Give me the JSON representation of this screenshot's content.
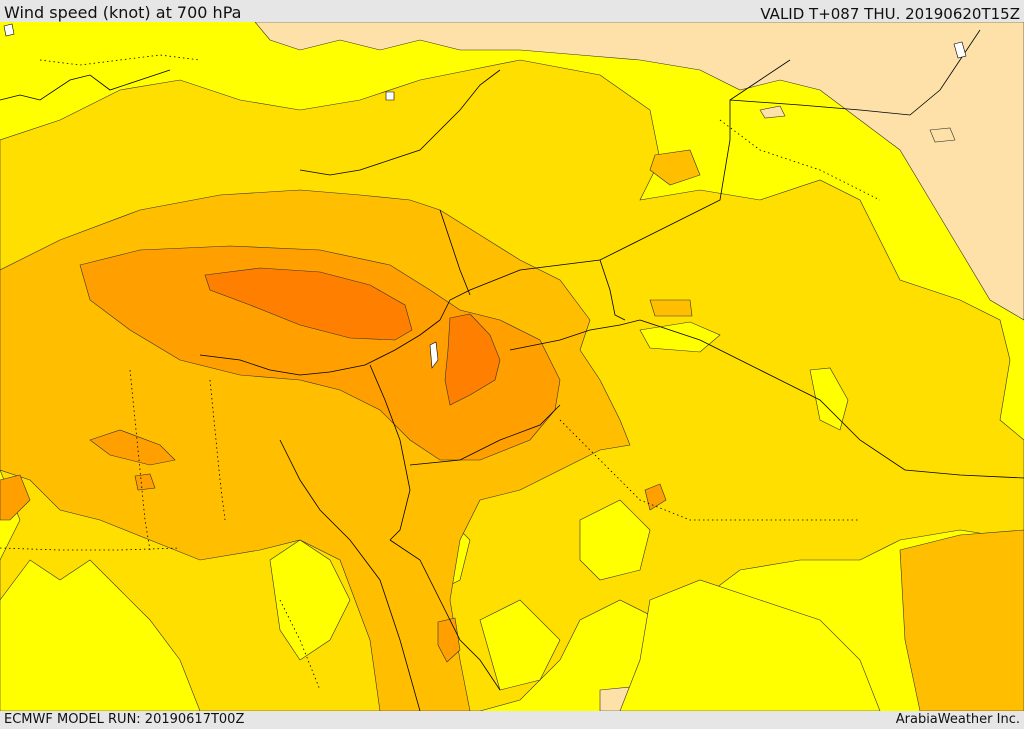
{
  "header": {
    "title": "Wind speed (knot) at 700 hPa",
    "valid_time": "VALID T+087 THU. 20190620T15Z"
  },
  "footer": {
    "model_run": "ECMWF MODEL RUN: 20190617T00Z",
    "credit": "ArabiaWeather Inc."
  },
  "map": {
    "parameter": "wind speed",
    "units": "knot",
    "level": "700 hPa",
    "fill_colors": {
      "lightest": "#fde1a8",
      "low": "#ffff00",
      "medium": "#ffdf00",
      "high": "#ffbf00",
      "higher": "#ff9f00",
      "highest": "#ff7f00"
    },
    "line_color": "#000000"
  }
}
